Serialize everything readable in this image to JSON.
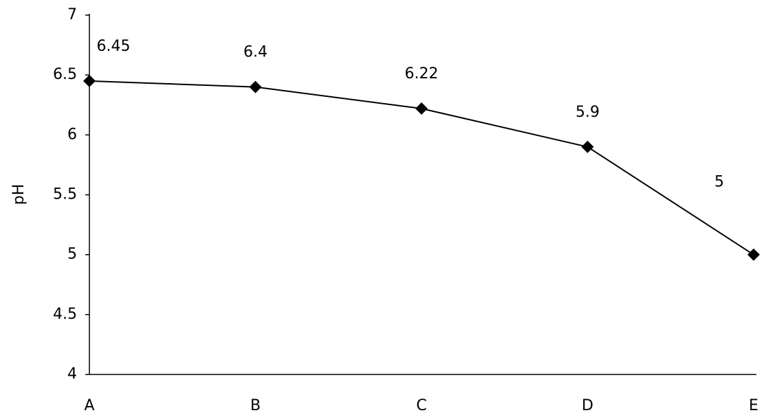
{
  "chart_data": {
    "type": "line",
    "y_label": "pH",
    "categories": [
      "A",
      "B",
      "C",
      "D",
      "E"
    ],
    "values": [
      6.45,
      6.4,
      6.22,
      5.9,
      5
    ],
    "color": "#000000",
    "marker": "diamond",
    "ylim": [
      4,
      7
    ],
    "yticks": [
      4,
      4.5,
      5,
      5.5,
      6,
      6.5,
      7
    ],
    "grid": false
  }
}
